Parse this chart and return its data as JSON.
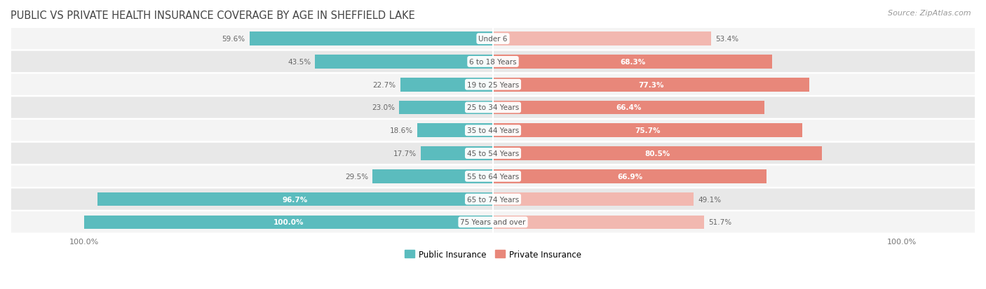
{
  "title": "PUBLIC VS PRIVATE HEALTH INSURANCE COVERAGE BY AGE IN SHEFFIELD LAKE",
  "source": "Source: ZipAtlas.com",
  "categories": [
    "Under 6",
    "6 to 18 Years",
    "19 to 25 Years",
    "25 to 34 Years",
    "35 to 44 Years",
    "45 to 54 Years",
    "55 to 64 Years",
    "65 to 74 Years",
    "75 Years and over"
  ],
  "public_values": [
    59.6,
    43.5,
    22.7,
    23.0,
    18.6,
    17.7,
    29.5,
    96.7,
    100.0
  ],
  "private_values": [
    53.4,
    68.3,
    77.3,
    66.4,
    75.7,
    80.5,
    66.9,
    49.1,
    51.7
  ],
  "public_color": "#5bbcbe",
  "private_color": "#e8877a",
  "public_color_light": "#a8d9da",
  "private_color_light": "#f2b8b0",
  "public_label": "Public Insurance",
  "private_label": "Private Insurance",
  "row_bg_light": "#f4f4f4",
  "row_bg_dark": "#e8e8e8",
  "bar_height": 0.6,
  "max_val": 100.0,
  "title_fontsize": 10.5,
  "legend_fontsize": 8.5,
  "source_fontsize": 8,
  "category_fontsize": 7.5,
  "value_fontsize": 7.5,
  "pub_inside_threshold": 90,
  "priv_inside_threshold": 60
}
